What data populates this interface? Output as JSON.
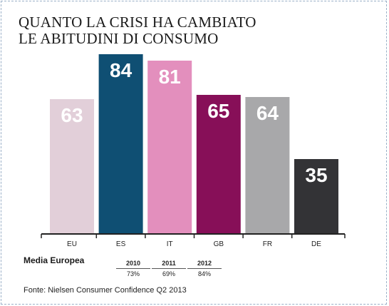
{
  "title_lines": [
    "QUANTO LA CRISI HA CAMBIATO",
    "LE ABITUDINI DI CONSUMO"
  ],
  "chart_data": {
    "type": "bar",
    "categories": [
      "EU",
      "ES",
      "IT",
      "GB",
      "FR",
      "DE"
    ],
    "values": [
      63,
      84,
      81,
      65,
      64,
      35
    ],
    "colors": [
      "#e2cfd9",
      "#0f4f73",
      "#e38fbd",
      "#870f58",
      "#a8a8aa",
      "#333336"
    ],
    "ylim": [
      0,
      100
    ],
    "grid": false,
    "legend": "none"
  },
  "media": {
    "label": "Media Europea",
    "years": [
      "2010",
      "2011",
      "2012"
    ],
    "values": [
      "73%",
      "69%",
      "84%"
    ]
  },
  "source": "Fonte: Nielsen Consumer Confidence Q2 2013"
}
